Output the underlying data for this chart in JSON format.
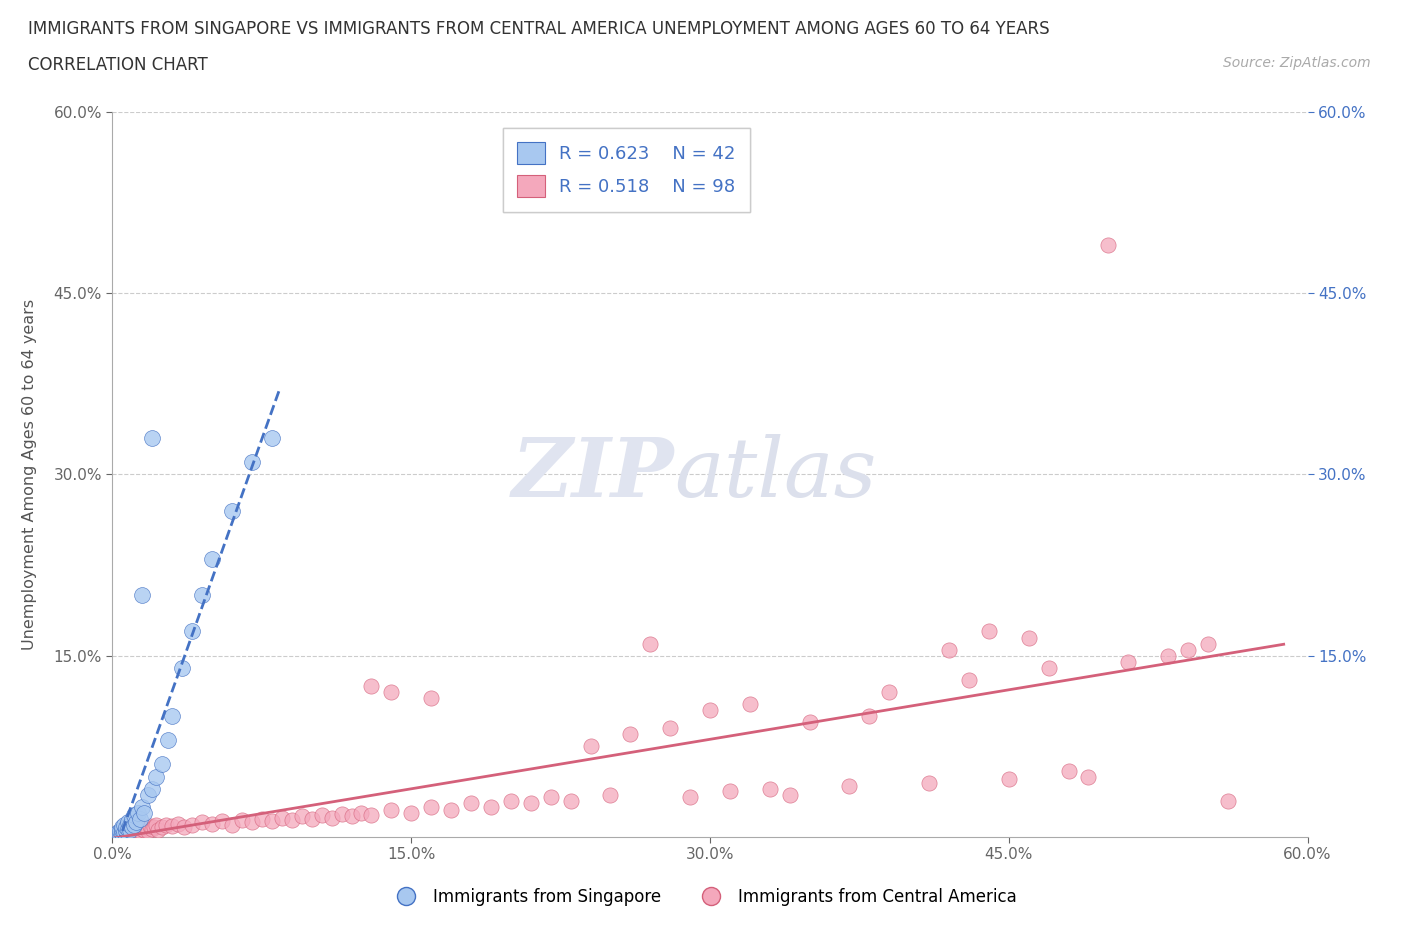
{
  "title_line1": "IMMIGRANTS FROM SINGAPORE VS IMMIGRANTS FROM CENTRAL AMERICA UNEMPLOYMENT AMONG AGES 60 TO 64 YEARS",
  "title_line2": "CORRELATION CHART",
  "source_text": "Source: ZipAtlas.com",
  "xlabel": "Immigrants from Singapore",
  "xlabel2": "Immigrants from Central America",
  "ylabel": "Unemployment Among Ages 60 to 64 years",
  "r_singapore": 0.623,
  "n_singapore": 42,
  "r_central_america": 0.518,
  "n_central_america": 98,
  "color_singapore": "#a8c8f0",
  "color_ca": "#f4a8bc",
  "line_singapore": "#4472c4",
  "line_ca": "#d4607a",
  "xlim": [
    0.0,
    0.6
  ],
  "ylim": [
    0.0,
    0.6
  ],
  "xtick_vals": [
    0.0,
    0.15,
    0.3,
    0.45,
    0.6
  ],
  "ytick_vals": [
    0.15,
    0.3,
    0.45,
    0.6
  ],
  "right_ytick_color": "#4472c4",
  "sg_x": [
    0.001,
    0.002,
    0.002,
    0.003,
    0.003,
    0.004,
    0.004,
    0.005,
    0.005,
    0.005,
    0.006,
    0.006,
    0.007,
    0.007,
    0.008,
    0.008,
    0.009,
    0.009,
    0.01,
    0.01,
    0.011,
    0.011,
    0.012,
    0.013,
    0.014,
    0.015,
    0.016,
    0.018,
    0.02,
    0.022,
    0.025,
    0.028,
    0.03,
    0.035,
    0.04,
    0.045,
    0.05,
    0.06,
    0.07,
    0.08,
    0.02,
    0.015
  ],
  "sg_y": [
    0.0,
    0.0,
    0.002,
    0.003,
    0.004,
    0.002,
    0.005,
    0.003,
    0.006,
    0.008,
    0.004,
    0.01,
    0.005,
    0.008,
    0.007,
    0.012,
    0.006,
    0.01,
    0.008,
    0.015,
    0.01,
    0.018,
    0.012,
    0.02,
    0.015,
    0.025,
    0.02,
    0.035,
    0.04,
    0.05,
    0.06,
    0.08,
    0.1,
    0.14,
    0.17,
    0.2,
    0.23,
    0.27,
    0.31,
    0.33,
    0.33,
    0.2
  ],
  "ca_x": [
    0.001,
    0.002,
    0.002,
    0.003,
    0.003,
    0.004,
    0.004,
    0.005,
    0.005,
    0.006,
    0.006,
    0.007,
    0.007,
    0.008,
    0.008,
    0.009,
    0.01,
    0.01,
    0.011,
    0.012,
    0.013,
    0.014,
    0.015,
    0.016,
    0.017,
    0.018,
    0.019,
    0.02,
    0.021,
    0.022,
    0.023,
    0.025,
    0.027,
    0.03,
    0.033,
    0.036,
    0.04,
    0.045,
    0.05,
    0.055,
    0.06,
    0.065,
    0.07,
    0.075,
    0.08,
    0.085,
    0.09,
    0.095,
    0.1,
    0.105,
    0.11,
    0.115,
    0.12,
    0.125,
    0.13,
    0.14,
    0.15,
    0.16,
    0.17,
    0.18,
    0.19,
    0.2,
    0.21,
    0.22,
    0.23,
    0.25,
    0.27,
    0.29,
    0.31,
    0.33,
    0.35,
    0.37,
    0.39,
    0.41,
    0.43,
    0.45,
    0.47,
    0.49,
    0.51,
    0.53,
    0.54,
    0.55,
    0.56,
    0.42,
    0.38,
    0.46,
    0.34,
    0.3,
    0.26,
    0.44,
    0.32,
    0.28,
    0.24,
    0.48,
    0.16,
    0.14,
    0.13,
    0.5
  ],
  "ca_y": [
    0.0,
    0.0,
    0.002,
    0.0,
    0.003,
    0.001,
    0.004,
    0.002,
    0.005,
    0.001,
    0.003,
    0.002,
    0.006,
    0.003,
    0.007,
    0.004,
    0.003,
    0.008,
    0.005,
    0.004,
    0.006,
    0.005,
    0.007,
    0.006,
    0.008,
    0.005,
    0.009,
    0.007,
    0.008,
    0.01,
    0.006,
    0.008,
    0.01,
    0.009,
    0.011,
    0.008,
    0.01,
    0.012,
    0.011,
    0.013,
    0.01,
    0.014,
    0.012,
    0.015,
    0.013,
    0.016,
    0.014,
    0.017,
    0.015,
    0.018,
    0.016,
    0.019,
    0.017,
    0.02,
    0.018,
    0.022,
    0.02,
    0.025,
    0.022,
    0.028,
    0.025,
    0.03,
    0.028,
    0.033,
    0.03,
    0.035,
    0.16,
    0.033,
    0.038,
    0.04,
    0.095,
    0.042,
    0.12,
    0.045,
    0.13,
    0.048,
    0.14,
    0.05,
    0.145,
    0.15,
    0.155,
    0.16,
    0.03,
    0.155,
    0.1,
    0.165,
    0.035,
    0.105,
    0.085,
    0.17,
    0.11,
    0.09,
    0.075,
    0.055,
    0.115,
    0.12,
    0.125,
    0.49
  ]
}
